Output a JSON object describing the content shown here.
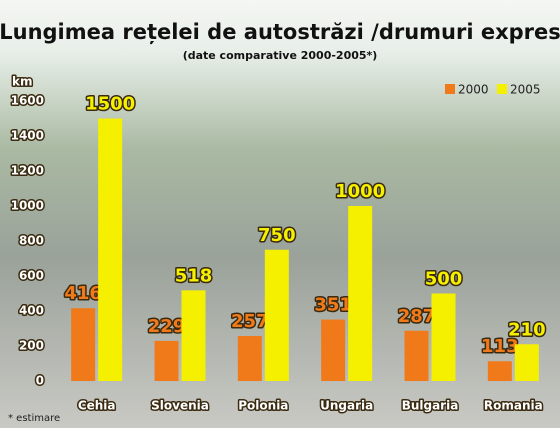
{
  "chart_data": {
    "type": "bar",
    "title": "Lungimea rețelei de autostrăzi /drumuri expres",
    "subtitle": "(date comparative 2000-2005*)",
    "y_label": "km",
    "footnote": "* estimare",
    "categories": [
      "Cehia",
      "Slovenia",
      "Polonia",
      "Ungaria",
      "Bulgaria",
      "Romania"
    ],
    "series": [
      {
        "name": "2000",
        "color": "#f07a1a",
        "values": [
          416,
          229,
          257,
          351,
          287,
          113
        ]
      },
      {
        "name": "2005",
        "color": "#f5f000",
        "values": [
          1500,
          518,
          750,
          1000,
          500,
          210
        ]
      }
    ],
    "ylim": [
      0,
      1600
    ],
    "yticks": [
      0,
      200,
      400,
      600,
      800,
      1000,
      1200,
      1400,
      1600
    ],
    "legend": "top-right"
  }
}
